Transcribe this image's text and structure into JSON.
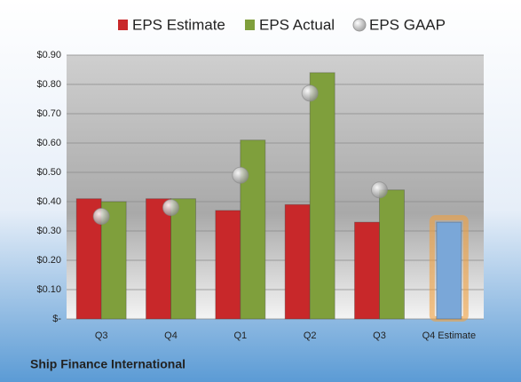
{
  "chart_data": {
    "type": "bar",
    "categories": [
      "Q3",
      "Q4",
      "Q1",
      "Q2",
      "Q3",
      "Q4 Estimate"
    ],
    "series": [
      {
        "name": "EPS Estimate",
        "color": "#c8282a",
        "colors": [
          "#c8282a",
          "#c8282a",
          "#c8282a",
          "#c8282a",
          "#c8282a",
          "#7aa7d8"
        ],
        "values": [
          0.41,
          0.41,
          0.37,
          0.39,
          0.33,
          0.33
        ]
      },
      {
        "name": "EPS Actual",
        "color": "#7f9f3c",
        "values": [
          0.4,
          0.41,
          0.61,
          0.84,
          0.44,
          null
        ]
      },
      {
        "name": "EPS GAAP",
        "color": "#a8a8a8",
        "marker": "circle",
        "values": [
          0.35,
          0.38,
          0.49,
          0.77,
          0.44,
          null
        ]
      }
    ],
    "highlight_glow": "#f0a040",
    "ylim": [
      0,
      0.9
    ],
    "yticks": [
      {
        "value": 0,
        "label": "$-"
      },
      {
        "value": 0.1,
        "label": "$0.10"
      },
      {
        "value": 0.2,
        "label": "$0.20"
      },
      {
        "value": 0.3,
        "label": "$0.30"
      },
      {
        "value": 0.4,
        "label": "$0.40"
      },
      {
        "value": 0.5,
        "label": "$0.50"
      },
      {
        "value": 0.6,
        "label": "$0.60"
      },
      {
        "value": 0.7,
        "label": "$0.70"
      },
      {
        "value": 0.8,
        "label": "$0.80"
      },
      {
        "value": 0.9,
        "label": "$0.90"
      }
    ],
    "grid": true,
    "footer": "Ship Finance International"
  }
}
